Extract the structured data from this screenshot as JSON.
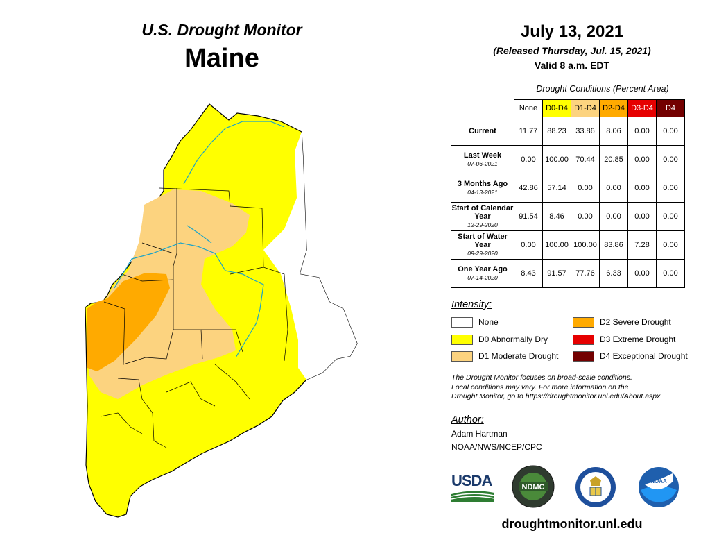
{
  "header": {
    "product": "U.S. Drought Monitor",
    "state": "Maine"
  },
  "date_block": {
    "date": "July 13, 2021",
    "released": "(Released Thursday, Jul. 15, 2021)",
    "valid": "Valid 8 a.m. EDT"
  },
  "table": {
    "caption": "Drought Conditions (Percent Area)",
    "columns": [
      {
        "label": "None",
        "color": "#ffffff"
      },
      {
        "label": "D0-D4",
        "color": "#ffff00"
      },
      {
        "label": "D1-D4",
        "color": "#fcd37f"
      },
      {
        "label": "D2-D4",
        "color": "#ffaa00"
      },
      {
        "label": "D3-D4",
        "color": "#e60000"
      },
      {
        "label": "D4",
        "color": "#730000"
      }
    ],
    "rows": [
      {
        "label": "Current",
        "date": "",
        "values": [
          "11.77",
          "88.23",
          "33.86",
          "8.06",
          "0.00",
          "0.00"
        ]
      },
      {
        "label": "Last Week",
        "date": "07-06-2021",
        "values": [
          "0.00",
          "100.00",
          "70.44",
          "20.85",
          "0.00",
          "0.00"
        ]
      },
      {
        "label": "3 Months Ago",
        "date": "04-13-2021",
        "values": [
          "42.86",
          "57.14",
          "0.00",
          "0.00",
          "0.00",
          "0.00"
        ]
      },
      {
        "label": "Start of Calendar Year",
        "date": "12-29-2020",
        "values": [
          "91.54",
          "8.46",
          "0.00",
          "0.00",
          "0.00",
          "0.00"
        ]
      },
      {
        "label": "Start of Water Year",
        "date": "09-29-2020",
        "values": [
          "0.00",
          "100.00",
          "100.00",
          "83.86",
          "7.28",
          "0.00"
        ]
      },
      {
        "label": "One Year Ago",
        "date": "07-14-2020",
        "values": [
          "8.43",
          "91.57",
          "77.76",
          "6.33",
          "0.00",
          "0.00"
        ]
      }
    ]
  },
  "legend": {
    "title": "Intensity:",
    "items": [
      {
        "label": "None",
        "color": "#ffffff"
      },
      {
        "label": "D0 Abnormally Dry",
        "color": "#ffff00"
      },
      {
        "label": "D1 Moderate Drought",
        "color": "#fcd37f"
      },
      {
        "label": "D2 Severe Drought",
        "color": "#ffaa00"
      },
      {
        "label": "D3 Extreme Drought",
        "color": "#e60000"
      },
      {
        "label": "D4 Exceptional Drought",
        "color": "#730000"
      }
    ]
  },
  "disclaimer": {
    "line1": "The Drought Monitor focuses on broad-scale conditions.",
    "line2": "Local conditions may vary. For more information on the",
    "line3": "Drought Monitor, go to https://droughtmonitor.unl.edu/About.aspx"
  },
  "author": {
    "title": "Author:",
    "name": "Adam Hartman",
    "org": "NOAA/NWS/NCEP/CPC"
  },
  "logos": {
    "usda": "USDA",
    "ndmc": "NDMC",
    "noaa": "NOAA"
  },
  "footer_url": "droughtmonitor.unl.edu"
}
